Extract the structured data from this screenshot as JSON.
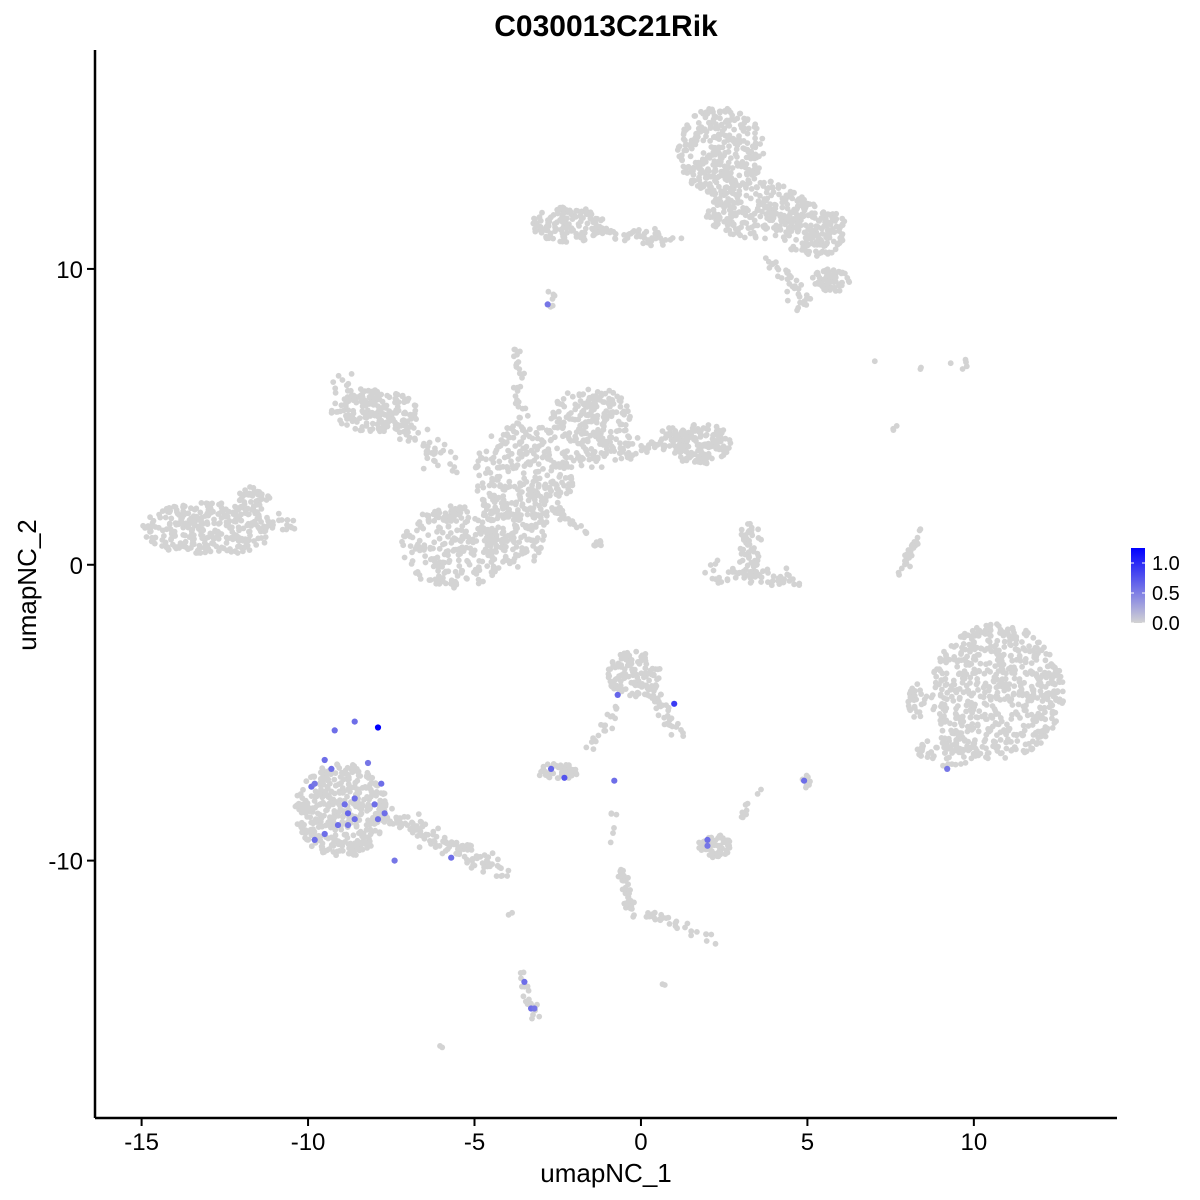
{
  "chart_data": {
    "type": "scatter",
    "title": "C030013C21Rik",
    "xlabel": "umapNC_1",
    "ylabel": "umapNC_2",
    "xlim": [
      -16.4,
      14.3
    ],
    "ylim": [
      -18.7,
      17.4
    ],
    "x_ticks": [
      -15,
      -10,
      -5,
      0,
      5,
      10
    ],
    "x_tick_labels": [
      "-15",
      "-10",
      "-5",
      "0",
      "5",
      "10"
    ],
    "y_ticks": [
      -10,
      0,
      10
    ],
    "y_tick_labels": [
      "-10",
      "0",
      "10"
    ],
    "grid": false,
    "color_scale": {
      "low_color": "#d3d3d3",
      "high_color": "#0000ff",
      "min": 0.0,
      "max": 1.25,
      "legend_ticks": [
        0.0,
        0.5,
        1.0
      ],
      "legend_tick_labels": [
        "0.0",
        "0.5",
        "1.0"
      ],
      "legend_position": "right"
    },
    "background_clusters": [
      {
        "shape": "blob",
        "cx": 2.4,
        "cy": 14.0,
        "rx": 1.3,
        "ry": 1.5,
        "n": 320
      },
      {
        "shape": "blob",
        "cx": 3.5,
        "cy": 12.0,
        "rx": 1.6,
        "ry": 1.0,
        "n": 240
      },
      {
        "shape": "blob",
        "cx": 5.2,
        "cy": 11.3,
        "rx": 1.0,
        "ry": 0.9,
        "n": 160
      },
      {
        "shape": "blob",
        "cx": 5.7,
        "cy": 9.6,
        "rx": 0.6,
        "ry": 0.4,
        "n": 70
      },
      {
        "shape": "blob",
        "cx": -2.2,
        "cy": 11.5,
        "rx": 1.1,
        "ry": 0.6,
        "n": 140
      },
      {
        "shape": "line",
        "x1": -1.2,
        "y1": 11.2,
        "x2": 1.0,
        "y2": 11.0,
        "w": 0.25,
        "n": 45
      },
      {
        "shape": "line",
        "x1": 4.0,
        "y1": 10.2,
        "x2": 4.9,
        "y2": 8.8,
        "w": 0.3,
        "n": 40
      },
      {
        "shape": "blob",
        "cx": -2.7,
        "cy": 9.0,
        "rx": 0.15,
        "ry": 0.3,
        "n": 6
      },
      {
        "shape": "blob",
        "cx": -8.0,
        "cy": 5.2,
        "rx": 1.3,
        "ry": 0.7,
        "n": 150
      },
      {
        "shape": "line",
        "x1": -9.0,
        "y1": 6.0,
        "x2": -5.6,
        "y2": 3.4,
        "w": 0.45,
        "n": 110
      },
      {
        "shape": "blob",
        "cx": -3.5,
        "cy": 3.0,
        "rx": 1.5,
        "ry": 1.8,
        "n": 300
      },
      {
        "shape": "blob",
        "cx": -1.5,
        "cy": 5.0,
        "rx": 1.2,
        "ry": 1.0,
        "n": 180
      },
      {
        "shape": "line",
        "x1": -2.0,
        "y1": 3.6,
        "x2": 1.5,
        "y2": 4.4,
        "w": 0.45,
        "n": 120
      },
      {
        "shape": "blob",
        "cx": 1.8,
        "cy": 4.1,
        "rx": 0.9,
        "ry": 0.7,
        "n": 130
      },
      {
        "shape": "blob",
        "cx": -5.6,
        "cy": 0.6,
        "rx": 1.6,
        "ry": 1.4,
        "n": 260
      },
      {
        "shape": "blob",
        "cx": -3.8,
        "cy": 1.0,
        "rx": 0.9,
        "ry": 1.2,
        "n": 130
      },
      {
        "shape": "line",
        "x1": -3.8,
        "y1": 7.5,
        "x2": -3.6,
        "y2": 4.6,
        "w": 0.2,
        "n": 30
      },
      {
        "shape": "line",
        "x1": -2.5,
        "y1": 1.8,
        "x2": -1.2,
        "y2": 0.6,
        "w": 0.12,
        "n": 35
      },
      {
        "shape": "blob",
        "cx": -13.0,
        "cy": 1.2,
        "rx": 2.0,
        "ry": 0.9,
        "n": 300
      },
      {
        "shape": "line",
        "x1": -11.2,
        "y1": 1.5,
        "x2": -10.5,
        "y2": 1.4,
        "w": 0.3,
        "n": 20
      },
      {
        "shape": "blob",
        "cx": -11.6,
        "cy": 2.2,
        "rx": 0.5,
        "ry": 0.5,
        "n": 40
      },
      {
        "shape": "blob",
        "cx": 3.3,
        "cy": 0.7,
        "rx": 0.4,
        "ry": 0.8,
        "n": 45
      },
      {
        "shape": "line",
        "x1": 2.1,
        "y1": -0.2,
        "x2": 4.6,
        "y2": -0.5,
        "w": 0.3,
        "n": 70
      },
      {
        "shape": "line",
        "x1": 7.8,
        "y1": -0.3,
        "x2": 8.4,
        "y2": 1.1,
        "w": 0.12,
        "n": 30
      },
      {
        "shape": "blob",
        "cx": 10.7,
        "cy": -4.3,
        "rx": 2.0,
        "ry": 2.3,
        "n": 620
      },
      {
        "shape": "blob",
        "cx": 8.3,
        "cy": -4.6,
        "rx": 0.3,
        "ry": 0.6,
        "n": 30
      },
      {
        "shape": "blob",
        "cx": 9.2,
        "cy": -6.3,
        "rx": 0.9,
        "ry": 0.5,
        "n": 60
      },
      {
        "shape": "blob",
        "cx": -9.0,
        "cy": -8.3,
        "rx": 1.4,
        "ry": 1.6,
        "n": 420
      },
      {
        "shape": "line",
        "x1": -7.6,
        "y1": -8.5,
        "x2": -4.0,
        "y2": -10.4,
        "w": 0.35,
        "n": 120
      },
      {
        "shape": "blob",
        "cx": -0.2,
        "cy": -3.7,
        "rx": 0.8,
        "ry": 0.8,
        "n": 120
      },
      {
        "shape": "line",
        "x1": 0.2,
        "y1": -4.2,
        "x2": 1.3,
        "y2": -5.8,
        "w": 0.25,
        "n": 35
      },
      {
        "shape": "line",
        "x1": -0.5,
        "y1": -4.6,
        "x2": -1.5,
        "y2": -6.2,
        "w": 0.2,
        "n": 20
      },
      {
        "shape": "blob",
        "cx": -2.5,
        "cy": -7.0,
        "rx": 0.6,
        "ry": 0.3,
        "n": 45
      },
      {
        "shape": "blob",
        "cx": 5.0,
        "cy": -7.3,
        "rx": 0.15,
        "ry": 0.25,
        "n": 10
      },
      {
        "shape": "blob",
        "cx": 2.2,
        "cy": -9.5,
        "rx": 0.5,
        "ry": 0.4,
        "n": 60
      },
      {
        "shape": "line",
        "x1": 3.0,
        "y1": -8.6,
        "x2": 3.6,
        "y2": -7.6,
        "w": 0.12,
        "n": 10
      },
      {
        "shape": "line",
        "x1": -0.6,
        "y1": -10.3,
        "x2": -0.2,
        "y2": -12.0,
        "w": 0.12,
        "n": 40
      },
      {
        "shape": "line",
        "x1": 0.2,
        "y1": -11.8,
        "x2": 2.3,
        "y2": -12.7,
        "w": 0.2,
        "n": 30
      },
      {
        "shape": "line",
        "x1": -0.9,
        "y1": -8.0,
        "x2": -0.8,
        "y2": -9.6,
        "w": 0.08,
        "n": 6
      },
      {
        "shape": "line",
        "x1": -3.6,
        "y1": -13.8,
        "x2": -3.2,
        "y2": -15.3,
        "w": 0.15,
        "n": 20
      },
      {
        "shape": "blob",
        "cx": 7.0,
        "cy": 6.9,
        "rx": 0.05,
        "ry": 0.05,
        "n": 1
      },
      {
        "shape": "blob",
        "cx": 8.4,
        "cy": 6.7,
        "rx": 0.1,
        "ry": 0.1,
        "n": 2
      },
      {
        "shape": "blob",
        "cx": 9.6,
        "cy": 6.8,
        "rx": 0.3,
        "ry": 0.2,
        "n": 5
      },
      {
        "shape": "blob",
        "cx": 7.6,
        "cy": 4.7,
        "rx": 0.1,
        "ry": 0.15,
        "n": 3
      },
      {
        "shape": "blob",
        "cx": -6.0,
        "cy": -16.3,
        "rx": 0.1,
        "ry": 0.05,
        "n": 2
      },
      {
        "shape": "blob",
        "cx": 0.7,
        "cy": -14.2,
        "rx": 0.1,
        "ry": 0.05,
        "n": 2
      },
      {
        "shape": "blob",
        "cx": -3.9,
        "cy": -11.8,
        "rx": 0.1,
        "ry": 0.05,
        "n": 2
      }
    ],
    "expressing_points": [
      {
        "x": -2.8,
        "y": 8.8,
        "v": 0.55
      },
      {
        "x": -7.9,
        "y": -5.5,
        "v": 1.25
      },
      {
        "x": -8.6,
        "y": -5.3,
        "v": 0.6
      },
      {
        "x": -9.2,
        "y": -5.6,
        "v": 0.6
      },
      {
        "x": -9.5,
        "y": -6.6,
        "v": 0.6
      },
      {
        "x": -9.3,
        "y": -6.9,
        "v": 0.6
      },
      {
        "x": -8.2,
        "y": -6.7,
        "v": 0.55
      },
      {
        "x": -9.9,
        "y": -7.5,
        "v": 0.6
      },
      {
        "x": -9.8,
        "y": -7.4,
        "v": 0.55
      },
      {
        "x": -7.8,
        "y": -7.4,
        "v": 0.6
      },
      {
        "x": -8.6,
        "y": -7.9,
        "v": 0.6
      },
      {
        "x": -8.9,
        "y": -8.1,
        "v": 0.6
      },
      {
        "x": -8.0,
        "y": -8.1,
        "v": 0.6
      },
      {
        "x": -8.8,
        "y": -8.4,
        "v": 0.65
      },
      {
        "x": -8.6,
        "y": -8.6,
        "v": 0.6
      },
      {
        "x": -7.7,
        "y": -8.4,
        "v": 0.6
      },
      {
        "x": -9.1,
        "y": -8.8,
        "v": 0.6
      },
      {
        "x": -7.9,
        "y": -8.6,
        "v": 0.6
      },
      {
        "x": -8.8,
        "y": -8.8,
        "v": 0.55
      },
      {
        "x": -9.5,
        "y": -9.1,
        "v": 0.6
      },
      {
        "x": -9.8,
        "y": -9.3,
        "v": 0.6
      },
      {
        "x": -7.4,
        "y": -10.0,
        "v": 0.55
      },
      {
        "x": -5.7,
        "y": -9.9,
        "v": 0.6
      },
      {
        "x": -0.7,
        "y": -4.4,
        "v": 0.65
      },
      {
        "x": 1.0,
        "y": -4.7,
        "v": 0.9
      },
      {
        "x": -2.7,
        "y": -6.9,
        "v": 0.65
      },
      {
        "x": -2.3,
        "y": -7.2,
        "v": 0.75
      },
      {
        "x": -0.8,
        "y": -7.3,
        "v": 0.6
      },
      {
        "x": 4.9,
        "y": -7.3,
        "v": 0.6
      },
      {
        "x": 9.2,
        "y": -6.9,
        "v": 0.55
      },
      {
        "x": 2.0,
        "y": -9.3,
        "v": 0.6
      },
      {
        "x": 2.0,
        "y": -9.5,
        "v": 0.55
      },
      {
        "x": -3.5,
        "y": -14.1,
        "v": 0.6
      },
      {
        "x": -3.3,
        "y": -15.0,
        "v": 0.6
      },
      {
        "x": -3.2,
        "y": -15.0,
        "v": 0.55
      }
    ]
  }
}
